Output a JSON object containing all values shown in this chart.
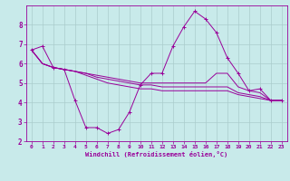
{
  "xlabel": "Windchill (Refroidissement éolien,°C)",
  "xlim": [
    -0.5,
    23.5
  ],
  "ylim": [
    2,
    9
  ],
  "yticks": [
    2,
    3,
    4,
    5,
    6,
    7,
    8
  ],
  "xticks": [
    0,
    1,
    2,
    3,
    4,
    5,
    6,
    7,
    8,
    9,
    10,
    11,
    12,
    13,
    14,
    15,
    16,
    17,
    18,
    19,
    20,
    21,
    22,
    23
  ],
  "bg_color": "#c8eaea",
  "line_color": "#990099",
  "grid_color": "#aacccc",
  "lines": [
    {
      "x": [
        0,
        1,
        2,
        3,
        4,
        5,
        6,
        7,
        8,
        9,
        10,
        11,
        12,
        13,
        14,
        15,
        16,
        17,
        18,
        19,
        20,
        21,
        22,
        23
      ],
      "y": [
        6.7,
        6.9,
        5.8,
        5.7,
        4.1,
        2.7,
        2.7,
        2.4,
        2.6,
        3.5,
        4.9,
        5.5,
        5.5,
        6.9,
        7.9,
        8.7,
        8.3,
        7.6,
        6.3,
        5.5,
        4.6,
        4.7,
        4.1,
        4.1
      ],
      "marker": true
    },
    {
      "x": [
        0,
        1,
        2,
        3,
        4,
        5,
        6,
        7,
        8,
        9,
        10,
        11,
        12,
        13,
        14,
        15,
        16,
        17,
        18,
        19,
        20,
        21,
        22,
        23
      ],
      "y": [
        6.7,
        6.0,
        5.8,
        5.7,
        5.6,
        5.5,
        5.4,
        5.3,
        5.2,
        5.1,
        5.0,
        5.0,
        5.0,
        5.0,
        5.0,
        5.0,
        5.0,
        5.5,
        5.5,
        4.8,
        4.6,
        4.5,
        4.1,
        4.1
      ],
      "marker": false
    },
    {
      "x": [
        0,
        1,
        2,
        3,
        4,
        5,
        6,
        7,
        8,
        9,
        10,
        11,
        12,
        13,
        14,
        15,
        16,
        17,
        18,
        19,
        20,
        21,
        22,
        23
      ],
      "y": [
        6.7,
        6.0,
        5.8,
        5.7,
        5.6,
        5.5,
        5.3,
        5.2,
        5.1,
        5.0,
        4.9,
        4.9,
        4.8,
        4.8,
        4.8,
        4.8,
        4.8,
        4.8,
        4.8,
        4.5,
        4.4,
        4.3,
        4.1,
        4.1
      ],
      "marker": false
    },
    {
      "x": [
        0,
        1,
        2,
        3,
        4,
        5,
        6,
        7,
        8,
        9,
        10,
        11,
        12,
        13,
        14,
        15,
        16,
        17,
        18,
        19,
        20,
        21,
        22,
        23
      ],
      "y": [
        6.7,
        6.0,
        5.8,
        5.7,
        5.6,
        5.4,
        5.2,
        5.0,
        4.9,
        4.8,
        4.7,
        4.7,
        4.6,
        4.6,
        4.6,
        4.6,
        4.6,
        4.6,
        4.6,
        4.4,
        4.3,
        4.2,
        4.1,
        4.1
      ],
      "marker": false
    }
  ]
}
